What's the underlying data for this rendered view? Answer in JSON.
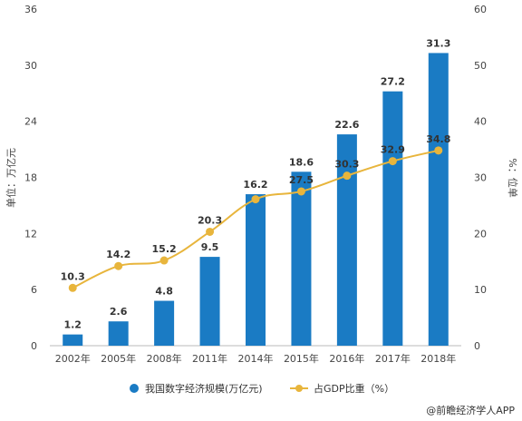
{
  "chart_data": {
    "type": "bar+line",
    "categories": [
      "2002年",
      "2005年",
      "2008年",
      "2011年",
      "2014年",
      "2015年",
      "2016年",
      "2017年",
      "2018年"
    ],
    "series": [
      {
        "name": "我国数字经济规模(万亿元)",
        "type": "bar",
        "axis": "left",
        "values": [
          1.2,
          2.6,
          4.8,
          9.5,
          16.2,
          18.6,
          22.6,
          27.2,
          31.3
        ]
      },
      {
        "name": "占GDP比重（%）",
        "type": "line",
        "axis": "right",
        "values": [
          10.3,
          14.2,
          15.2,
          20.3,
          26.1,
          27.5,
          30.3,
          32.9,
          34.8
        ]
      }
    ],
    "bar_labels": [
      "1.2",
      "2.6",
      "4.8",
      "9.5",
      "16.2",
      "18.6",
      "22.6",
      "27.2",
      "31.3"
    ],
    "line_labels": [
      "10.3",
      "14.2",
      "15.2",
      "20.3",
      "",
      "27.5",
      "30.3",
      "32.9",
      "34.8"
    ],
    "ylabel_left": "单位：万亿元",
    "ylabel_right": "%：位单",
    "ylim_left": [
      0,
      36
    ],
    "yticks_left": [
      0,
      6,
      12,
      18,
      24,
      30,
      36
    ],
    "ylim_right": [
      0,
      60
    ],
    "yticks_right": [
      0,
      10,
      20,
      30,
      40,
      50,
      60
    ],
    "grid": false,
    "legend_position": "bottom",
    "colors": {
      "bar": "#1a7bc4",
      "line": "#e8b53c"
    }
  },
  "source": "@前瞻经济学人APP"
}
